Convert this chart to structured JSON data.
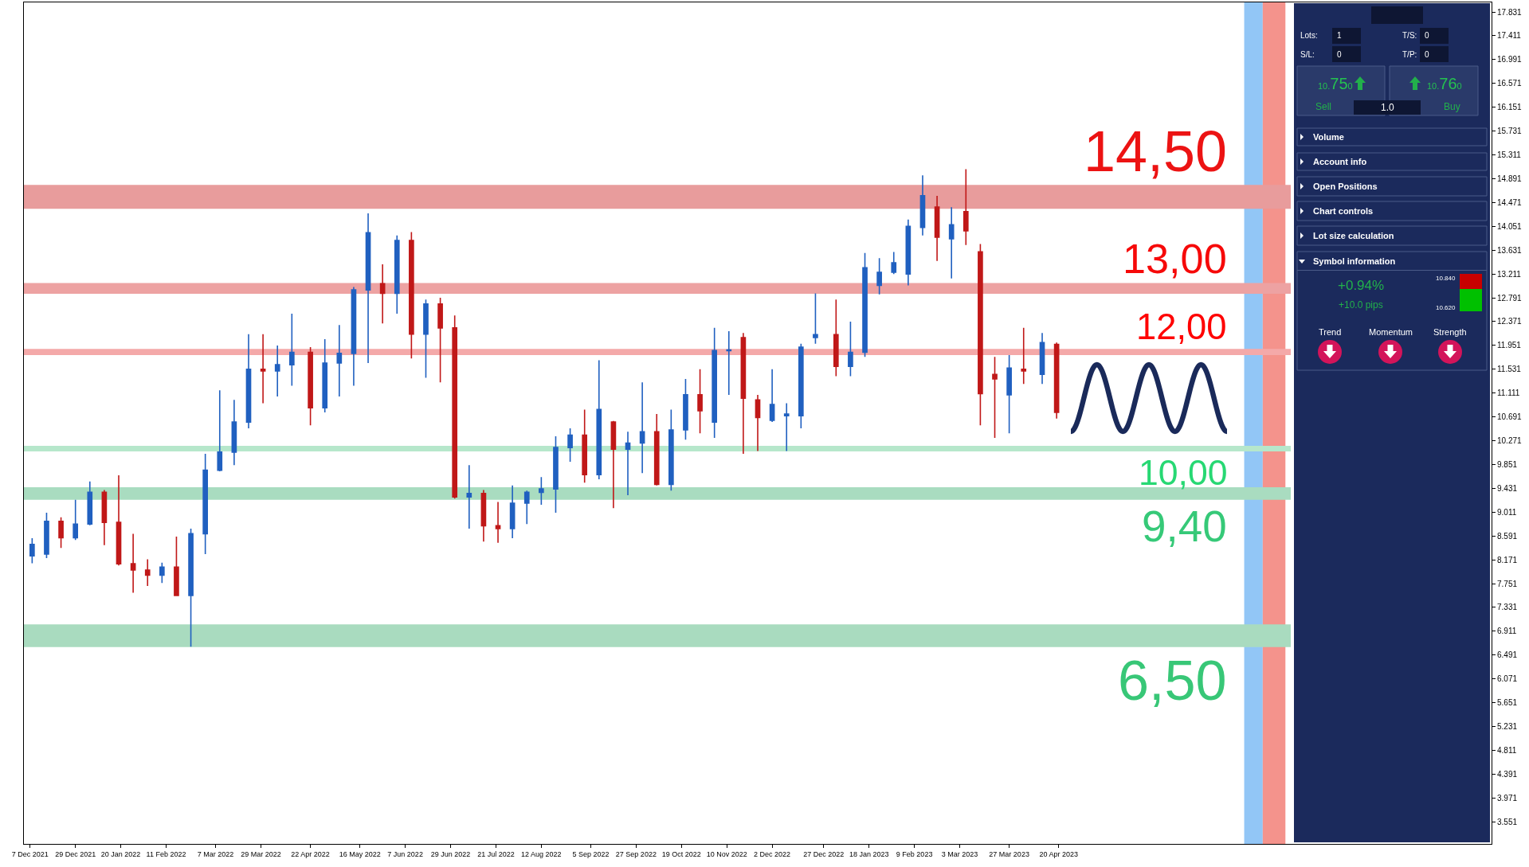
{
  "chart_data": [
    {
      "type": "candlestick",
      "x": [
        "2021-12-08",
        "2021-12-15",
        "2021-12-22",
        "2021-12-29",
        "2022-01-05",
        "2022-01-12",
        "2022-01-19",
        "2022-01-26",
        "2022-02-02",
        "2022-02-09",
        "2022-02-16",
        "2022-02-23",
        "2022-03-02",
        "2022-03-09",
        "2022-03-16",
        "2022-03-23",
        "2022-03-30",
        "2022-04-06",
        "2022-04-13",
        "2022-04-22",
        "2022-04-29",
        "2022-05-06",
        "2022-05-13",
        "2022-05-20",
        "2022-05-27",
        "2022-06-03",
        "2022-06-10",
        "2022-06-17",
        "2022-06-24",
        "2022-07-01",
        "2022-07-08",
        "2022-07-15",
        "2022-07-22",
        "2022-07-29",
        "2022-08-05",
        "2022-08-12",
        "2022-08-19",
        "2022-08-26",
        "2022-09-02",
        "2022-09-09",
        "2022-09-16",
        "2022-09-23",
        "2022-09-30",
        "2022-10-07",
        "2022-10-14",
        "2022-10-21",
        "2022-10-28",
        "2022-11-04",
        "2022-11-11",
        "2022-11-18",
        "2022-11-25",
        "2022-12-02",
        "2022-12-09",
        "2022-12-16",
        "2022-12-23",
        "2023-01-02",
        "2023-01-09",
        "2023-01-16",
        "2023-01-23",
        "2023-01-30",
        "2023-02-06",
        "2023-02-13",
        "2023-02-20",
        "2023-02-27",
        "2023-03-06",
        "2023-03-13",
        "2023-03-20",
        "2023-03-27",
        "2023-04-03",
        "2023-04-12",
        "2023-04-19"
      ],
      "ohlc": [
        [
          8.24,
          8.55,
          8.11,
          8.44
        ],
        [
          8.27,
          9.0,
          8.2,
          8.85
        ],
        [
          8.85,
          8.92,
          8.38,
          8.56
        ],
        [
          8.56,
          9.23,
          8.52,
          8.8
        ],
        [
          8.8,
          9.55,
          8.78,
          9.36
        ],
        [
          9.36,
          9.4,
          8.43,
          8.83
        ],
        [
          8.83,
          9.66,
          8.07,
          8.1
        ],
        [
          8.1,
          8.63,
          7.59,
          7.99
        ],
        [
          7.99,
          8.18,
          7.71,
          7.9
        ],
        [
          7.9,
          8.12,
          7.76,
          8.04
        ],
        [
          8.04,
          8.58,
          7.53,
          7.54
        ],
        [
          7.54,
          8.72,
          6.64,
          8.63
        ],
        [
          8.63,
          10.04,
          8.27,
          9.75
        ],
        [
          9.75,
          11.16,
          9.73,
          10.07
        ],
        [
          10.07,
          10.99,
          9.84,
          10.6
        ],
        [
          10.6,
          12.15,
          10.49,
          11.53
        ],
        [
          11.53,
          12.15,
          10.93,
          11.5
        ],
        [
          11.5,
          11.95,
          11.05,
          11.61
        ],
        [
          11.61,
          12.51,
          11.24,
          11.83
        ],
        [
          11.83,
          11.92,
          10.54,
          10.85
        ],
        [
          10.85,
          12.06,
          10.77,
          11.64
        ],
        [
          11.64,
          12.31,
          11.05,
          11.81
        ],
        [
          11.81,
          12.98,
          11.24,
          12.93
        ],
        [
          12.93,
          14.28,
          11.64,
          13.94
        ],
        [
          13.04,
          13.38,
          12.34,
          12.87
        ],
        [
          12.87,
          13.89,
          12.51,
          13.8
        ],
        [
          13.8,
          13.95,
          11.72,
          12.15
        ],
        [
          12.15,
          12.76,
          11.38,
          12.68
        ],
        [
          12.68,
          12.79,
          11.3,
          12.26
        ],
        [
          12.26,
          12.48,
          9.25,
          9.28
        ],
        [
          9.28,
          9.84,
          8.72,
          9.34
        ],
        [
          9.34,
          9.4,
          8.49,
          8.77
        ],
        [
          8.77,
          9.19,
          8.47,
          8.72
        ],
        [
          8.72,
          9.48,
          8.55,
          9.17
        ],
        [
          9.17,
          9.39,
          8.8,
          9.36
        ],
        [
          9.36,
          9.63,
          9.14,
          9.42
        ],
        [
          9.42,
          10.35,
          9.0,
          10.15
        ],
        [
          10.15,
          10.49,
          9.9,
          10.37
        ],
        [
          10.37,
          10.82,
          9.53,
          9.67
        ],
        [
          9.67,
          11.69,
          9.59,
          10.82
        ],
        [
          10.6,
          10.62,
          9.08,
          10.12
        ],
        [
          10.12,
          10.43,
          9.31,
          10.23
        ],
        [
          10.23,
          11.3,
          9.7,
          10.43
        ],
        [
          10.43,
          10.74,
          9.48,
          9.5
        ],
        [
          9.5,
          10.82,
          9.39,
          10.46
        ],
        [
          10.46,
          11.36,
          10.29,
          11.08
        ],
        [
          11.08,
          11.53,
          10.4,
          10.8
        ],
        [
          10.6,
          12.26,
          10.32,
          11.86
        ],
        [
          11.86,
          12.2,
          11.08,
          11.87
        ],
        [
          12.09,
          12.17,
          10.04,
          11.02
        ],
        [
          10.99,
          11.08,
          10.09,
          10.68
        ],
        [
          10.63,
          11.53,
          10.6,
          10.91
        ],
        [
          10.71,
          10.93,
          10.09,
          10.74
        ],
        [
          10.71,
          11.98,
          10.49,
          11.92
        ],
        [
          12.09,
          12.87,
          11.98,
          12.14
        ],
        [
          12.14,
          12.76,
          11.41,
          11.58
        ],
        [
          11.58,
          12.37,
          11.41,
          11.83
        ],
        [
          11.83,
          13.58,
          11.75,
          13.32
        ],
        [
          13.01,
          13.49,
          12.85,
          13.24
        ],
        [
          13.24,
          13.6,
          13.21,
          13.41
        ],
        [
          13.21,
          14.17,
          13.01,
          14.05
        ],
        [
          14.03,
          14.95,
          13.89,
          14.59
        ],
        [
          14.39,
          14.59,
          13.44,
          13.86
        ],
        [
          13.83,
          14.39,
          13.13,
          14.08
        ],
        [
          14.31,
          15.06,
          13.72,
          13.97
        ],
        [
          13.6,
          13.74,
          10.54,
          11.1
        ],
        [
          11.44,
          11.75,
          10.32,
          11.36
        ],
        [
          11.08,
          11.78,
          10.4,
          11.55
        ],
        [
          11.53,
          12.26,
          11.27,
          11.5
        ],
        [
          11.44,
          12.17,
          11.27,
          12.0
        ],
        [
          11.97,
          12.0,
          10.66,
          10.77
        ]
      ],
      "colors": [
        "#2060c0",
        "#2060c0",
        "#c01818",
        "#2060c0",
        "#2060c0",
        "#c01818",
        "#c01818",
        "#c01818",
        "#c01818",
        "#2060c0",
        "#c01818",
        "#2060c0",
        "#2060c0",
        "#2060c0",
        "#2060c0",
        "#2060c0",
        "#c01818",
        "#2060c0",
        "#2060c0",
        "#c01818",
        "#2060c0",
        "#2060c0",
        "#2060c0",
        "#2060c0",
        "#c01818",
        "#2060c0",
        "#c01818",
        "#2060c0",
        "#c01818",
        "#c01818",
        "#2060c0",
        "#c01818",
        "#c01818",
        "#2060c0",
        "#2060c0",
        "#2060c0",
        "#2060c0",
        "#2060c0",
        "#c01818",
        "#2060c0",
        "#c01818",
        "#2060c0",
        "#2060c0",
        "#c01818",
        "#2060c0",
        "#2060c0",
        "#c01818",
        "#2060c0",
        "#2060c0",
        "#c01818",
        "#c01818",
        "#2060c0",
        "#2060c0",
        "#2060c0",
        "#2060c0",
        "#c01818",
        "#2060c0",
        "#2060c0",
        "#2060c0",
        "#2060c0",
        "#2060c0",
        "#2060c0",
        "#c01818",
        "#2060c0",
        "#c01818",
        "#c01818",
        "#c01818",
        "#2060c0",
        "#c01818",
        "#2060c0",
        "#c01818"
      ],
      "xlim": [
        "2021-12-04",
        "2023-11-16"
      ],
      "xticks": [
        {
          "value": "2021-12-07",
          "label": "7 Dec 2021"
        },
        {
          "value": "2021-12-29",
          "label": "29 Dec 2021"
        },
        {
          "value": "2022-01-20",
          "label": "20 Jan 2022"
        },
        {
          "value": "2022-02-11",
          "label": "11 Feb 2022"
        },
        {
          "value": "2022-03-07",
          "label": "7 Mar 2022"
        },
        {
          "value": "2022-03-29",
          "label": "29 Mar 2022"
        },
        {
          "value": "2022-04-22",
          "label": "22 Apr 2022"
        },
        {
          "value": "2022-05-16",
          "label": "16 May 2022"
        },
        {
          "value": "2022-06-07",
          "label": "7 Jun 2022"
        },
        {
          "value": "2022-06-29",
          "label": "29 Jun 2022"
        },
        {
          "value": "2022-07-21",
          "label": "21 Jul 2022"
        },
        {
          "value": "2022-08-12",
          "label": "12 Aug 2022"
        },
        {
          "value": "2022-09-05",
          "label": "5 Sep 2022"
        },
        {
          "value": "2022-09-27",
          "label": "27 Sep 2022"
        },
        {
          "value": "2022-10-19",
          "label": "19 Oct 2022"
        },
        {
          "value": "2022-11-10",
          "label": "10 Nov 2022"
        },
        {
          "value": "2022-12-02",
          "label": "2 Dec 2022"
        },
        {
          "value": "2022-12-27",
          "label": "27 Dec 2022"
        },
        {
          "value": "2023-01-18",
          "label": "18 Jan 2023"
        },
        {
          "value": "2023-02-09",
          "label": "9 Feb 2023"
        },
        {
          "value": "2023-03-03",
          "label": "3 Mar 2023"
        },
        {
          "value": "2023-03-27",
          "label": "27 Mar 2023"
        },
        {
          "value": "2023-04-20",
          "label": "20 Apr 2023"
        }
      ],
      "ylim": [
        3.16,
        18.0
      ],
      "yticks": [
        17.831,
        17.411,
        16.991,
        16.571,
        16.151,
        15.731,
        15.311,
        14.891,
        14.471,
        14.051,
        13.631,
        13.211,
        12.791,
        12.371,
        11.951,
        11.531,
        11.111,
        10.691,
        10.271,
        9.851,
        9.431,
        9.011,
        8.591,
        8.171,
        7.751,
        7.331,
        6.911,
        6.491,
        6.071,
        5.651,
        5.231,
        4.811,
        4.391,
        3.971,
        3.551
      ],
      "bands": [
        {
          "axis": "x",
          "from": "2023-07-19",
          "to": "2023-07-28",
          "color": "#92c6f6"
        },
        {
          "axis": "x",
          "from": "2023-07-28",
          "to": "2023-08-08",
          "color": "#f4938c"
        },
        {
          "axis": "y",
          "from": 14.36,
          "to": 14.78,
          "label": "14,50",
          "color": "#e89c9c"
        },
        {
          "axis": "y",
          "from": 12.86,
          "to": 13.05,
          "label": "13,00",
          "color": "#eda2a2"
        },
        {
          "axis": "y",
          "from": 11.78,
          "to": 11.89,
          "label": "12,00",
          "color": "#f4a9a9"
        },
        {
          "axis": "y",
          "from": 10.08,
          "to": 10.18,
          "label": "10,00",
          "color": "#b6e7cb"
        },
        {
          "axis": "y",
          "from": 9.23,
          "to": 9.45,
          "label": "9,40",
          "color": "#a9dcc0"
        },
        {
          "axis": "y",
          "from": 6.63,
          "to": 7.03,
          "label": "6,50",
          "color": "#a9dbbf"
        }
      ],
      "legend": false
    },
    {
      "type": "other",
      "annotations": [
        "Lots:",
        "1",
        "T/S:",
        "0",
        "S/L:",
        "0",
        "T/P:",
        "0",
        "10.750",
        "10.760",
        "Sell",
        "1.0",
        "Buy",
        "Volume",
        "Account info",
        "Open Positions",
        "Chart controls",
        "Lot size calculation",
        "Symbol information",
        "+0.94%",
        "10.840",
        "+10.0 pips",
        "10.620",
        "Trend",
        "Momentum",
        "Strength"
      ]
    }
  ]
}
